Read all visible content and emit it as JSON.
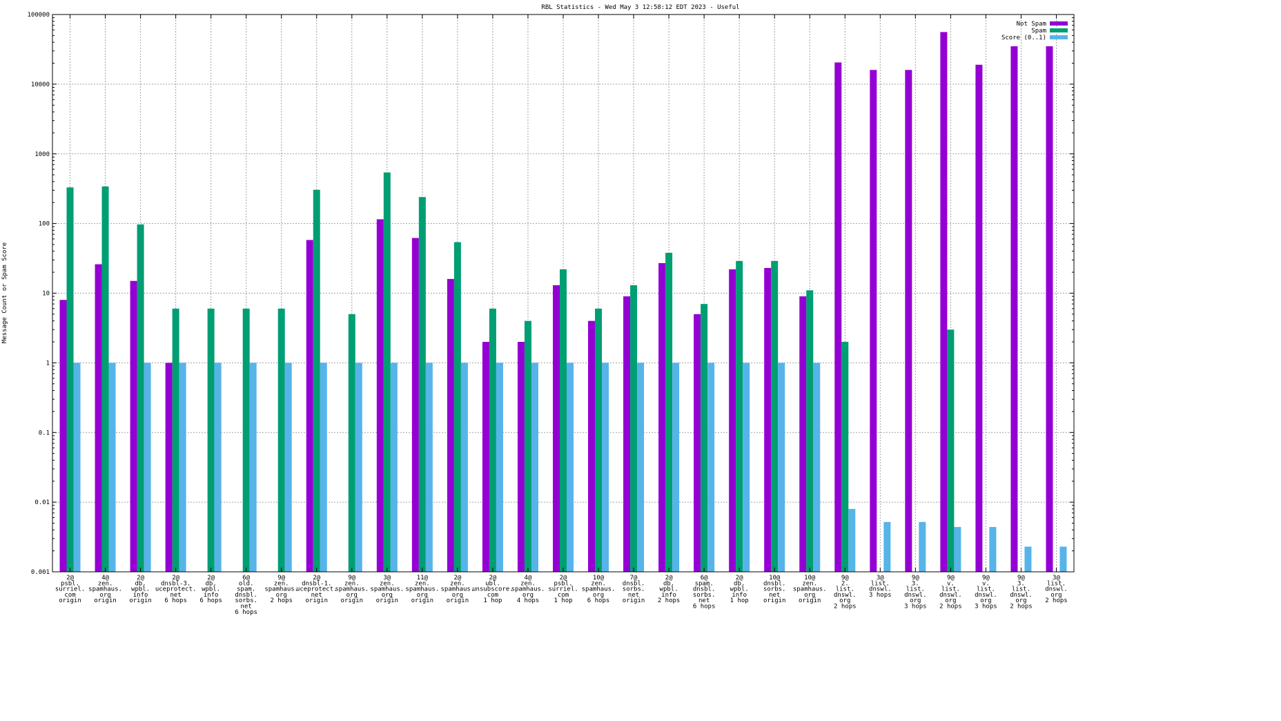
{
  "chart_data": {
    "type": "bar",
    "title": "RBL Statistics - Wed May  3 12:58:12 EDT 2023 - Useful",
    "ylabel": "Message Count or Spam Score",
    "xlabel": "",
    "yscale": "log",
    "ylim": [
      0.001,
      100000
    ],
    "yticks": [
      "0.001",
      "0.01",
      "0.1",
      "1",
      "10",
      "100",
      "1000",
      "10000",
      "100000"
    ],
    "grid": true,
    "legend_position": "top-right",
    "categories": [
      "2@\npsbl.\nsurriel.\ncom\norigin",
      "4@\nzen.\nspamhaus.\norg\norigin",
      "2@\ndb.\nwpbl.\ninfo\norigin",
      "2@\ndnsbl-3.\nuceprotect.\nnet\n6 hops",
      "2@\ndb.\nwpbl.\ninfo\n6 hops",
      "6@\nold.\nspam.\ndnsbl.\nsorbs.\nnet\n6 hops",
      "9@\nzen.\nspamhaus.\norg\n2 hops",
      "2@\ndnsbl-1.\nuceprotect.\nnet\norigin",
      "9@\nzen.\nspamhaus.\norg\norigin",
      "3@\nzen.\nspamhaus.\norg\norigin",
      "11@\nzen.\nspamhaus.\norg\norigin",
      "2@\nzen.\nspamhaus.\norg\norigin",
      "2@\nubl.\nunsubscore.\ncom\n1 hop",
      "4@\nzen.\nspamhaus.\norg\n4 hops",
      "2@\npsbl.\nsurriel.\ncom\n1 hop",
      "10@\nzen.\nspamhaus.\norg\n6 hops",
      "7@\ndnsbl.\nsorbs.\nnet\norigin",
      "2@\ndb.\nwpbl.\ninfo\n2 hops",
      "6@\nspam.\ndnsbl.\nsorbs.\nnet\n6 hops",
      "2@\ndb.\nwpbl.\ninfo\n1 hop",
      "10@\ndnsbl.\nsorbs.\nnet\norigin",
      "10@\nzen.\nspamhaus.\norg\norigin",
      "9@\n2.\nlist.\ndnswl.\norg\n2 hops",
      "3@\nlist.\ndnswl.\n3 hops",
      "9@\n3.\nlist.\ndnswl.\norg\n3 hops",
      "9@\nv.\nlist.\ndnswl.\norg\n2 hops",
      "9@\nv.\nlist.\ndnswl.\norg\n3 hops",
      "9@\n3.\nlist.\ndnswl.\norg\n2 hops",
      "3@\nlist.\ndnswl.\norg\n2 hops"
    ],
    "series": [
      {
        "name": "Not Spam",
        "color": "#9400d3",
        "values": [
          8,
          26,
          15,
          1,
          null,
          null,
          null,
          58,
          null,
          115,
          62,
          16,
          2,
          2,
          13,
          4,
          9,
          27,
          5,
          22,
          23,
          9,
          20500,
          16000,
          16000,
          56000,
          19000,
          35000,
          35000
        ]
      },
      {
        "name": "Spam",
        "color": "#009e73",
        "values": [
          330,
          340,
          97,
          6,
          6,
          6,
          6,
          305,
          5,
          540,
          240,
          54,
          6,
          4,
          22,
          6,
          13,
          38,
          7,
          29,
          29,
          11,
          2,
          null,
          null,
          3,
          null,
          null,
          null
        ]
      },
      {
        "name": "Score (0..1)",
        "color": "#56b4e9",
        "values": [
          1,
          1,
          1,
          1,
          1,
          1,
          1,
          1,
          1,
          1,
          1,
          1,
          1,
          1,
          1,
          1,
          1,
          1,
          1,
          1,
          1,
          1,
          0.008,
          0.0052,
          0.0052,
          0.0044,
          0.0044,
          0.0023,
          0.0023
        ]
      }
    ]
  }
}
